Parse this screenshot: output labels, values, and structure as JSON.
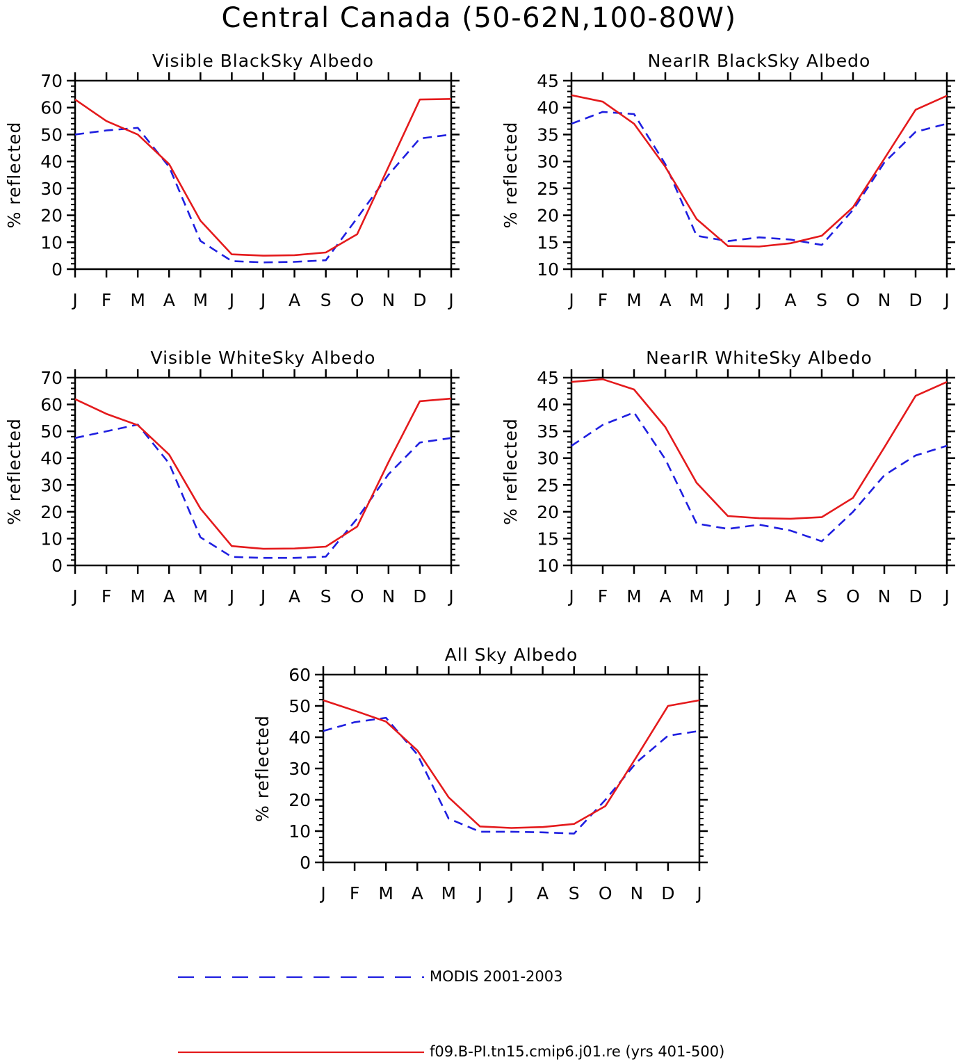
{
  "title": "Central Canada (50-62N,100-80W)",
  "months": [
    "J",
    "F",
    "M",
    "A",
    "M",
    "J",
    "J",
    "A",
    "S",
    "O",
    "N",
    "D",
    "J"
  ],
  "ylabel": "% reflected",
  "colors": {
    "model": "#e41a1c",
    "obs": "#1f1fe0",
    "axis": "#000000"
  },
  "legend": [
    {
      "key": "obs",
      "label": "MODIS 2001-2003",
      "style": "dashed"
    },
    {
      "key": "model",
      "label": "f09.B-PI.tn15.cmip6.j01.re (yrs 401-500)",
      "style": "solid"
    }
  ],
  "chart_data": [
    {
      "type": "line",
      "title": "Visible BlackSky Albedo",
      "ylabel": "% reflected",
      "ylim": [
        0,
        70
      ],
      "yticks": [
        0,
        10,
        20,
        30,
        40,
        50,
        60,
        70
      ],
      "categories": [
        "J",
        "F",
        "M",
        "A",
        "M",
        "J",
        "J",
        "A",
        "S",
        "O",
        "N",
        "D",
        "J"
      ],
      "series": [
        {
          "key": "obs",
          "values": [
            50,
            51.5,
            52.5,
            38,
            10.5,
            3,
            2.5,
            2.7,
            3.3,
            19,
            35,
            48.5,
            50
          ]
        },
        {
          "key": "model",
          "values": [
            63,
            55,
            50,
            39,
            18,
            5.5,
            5,
            5.2,
            6.2,
            13,
            38,
            63,
            63.2
          ]
        }
      ]
    },
    {
      "type": "line",
      "title": "NearIR BlackSky Albedo",
      "ylabel": "% reflected",
      "ylim": [
        10,
        45
      ],
      "yticks": [
        10,
        15,
        20,
        25,
        30,
        35,
        40,
        45
      ],
      "categories": [
        "J",
        "F",
        "M",
        "A",
        "M",
        "J",
        "J",
        "A",
        "S",
        "O",
        "N",
        "D",
        "J"
      ],
      "series": [
        {
          "key": "obs",
          "values": [
            37,
            39.2,
            38.8,
            29.5,
            16.2,
            15.2,
            15.9,
            15.5,
            14.5,
            21,
            29.8,
            35.5,
            37
          ]
        },
        {
          "key": "model",
          "values": [
            42.3,
            41.1,
            37,
            29,
            19.3,
            14.3,
            14.2,
            14.8,
            16.2,
            21.5,
            30.5,
            39.6,
            42.2
          ]
        }
      ]
    },
    {
      "type": "line",
      "title": "Visible WhiteSky Albedo",
      "ylabel": "% reflected",
      "ylim": [
        0,
        70
      ],
      "yticks": [
        0,
        10,
        20,
        30,
        40,
        50,
        60,
        70
      ],
      "categories": [
        "J",
        "F",
        "M",
        "A",
        "M",
        "J",
        "J",
        "A",
        "S",
        "O",
        "N",
        "D",
        "J"
      ],
      "series": [
        {
          "key": "obs",
          "values": [
            47.5,
            50,
            52.5,
            38,
            10.5,
            3.2,
            2.8,
            2.8,
            3.3,
            17.5,
            34,
            45.8,
            47.5
          ]
        },
        {
          "key": "model",
          "values": [
            62,
            56.5,
            52.3,
            41.3,
            21.2,
            7.2,
            6.2,
            6.3,
            7,
            14.5,
            38.5,
            61.2,
            62.2
          ]
        }
      ]
    },
    {
      "type": "line",
      "title": "NearIR WhiteSky Albedo",
      "ylabel": "% reflected",
      "ylim": [
        10,
        45
      ],
      "yticks": [
        10,
        15,
        20,
        25,
        30,
        35,
        40,
        45
      ],
      "categories": [
        "J",
        "F",
        "M",
        "A",
        "M",
        "J",
        "J",
        "A",
        "S",
        "O",
        "N",
        "D",
        "J"
      ],
      "series": [
        {
          "key": "obs",
          "values": [
            32.3,
            36.2,
            38.5,
            29.8,
            17.8,
            16.8,
            17.6,
            16.5,
            14.5,
            20,
            26.8,
            30.5,
            32.3
          ]
        },
        {
          "key": "model",
          "values": [
            44.2,
            44.7,
            42.8,
            35.8,
            25.4,
            19.2,
            18.8,
            18.7,
            19,
            22.6,
            32,
            41.6,
            44.2
          ]
        }
      ]
    },
    {
      "type": "line",
      "title": "All Sky Albedo",
      "ylabel": "% reflected",
      "ylim": [
        0,
        60
      ],
      "yticks": [
        0,
        10,
        20,
        30,
        40,
        50,
        60
      ],
      "categories": [
        "J",
        "F",
        "M",
        "A",
        "M",
        "J",
        "J",
        "A",
        "S",
        "O",
        "N",
        "D",
        "J"
      ],
      "series": [
        {
          "key": "obs",
          "values": [
            42,
            44.8,
            46.2,
            34.5,
            14,
            9.8,
            9.8,
            9.6,
            9.2,
            20,
            32,
            40.5,
            42
          ]
        },
        {
          "key": "model",
          "values": [
            51.8,
            48.5,
            45,
            35.8,
            20.8,
            11.5,
            11,
            11.3,
            12.3,
            18,
            33.8,
            50,
            51.8
          ]
        }
      ]
    }
  ]
}
